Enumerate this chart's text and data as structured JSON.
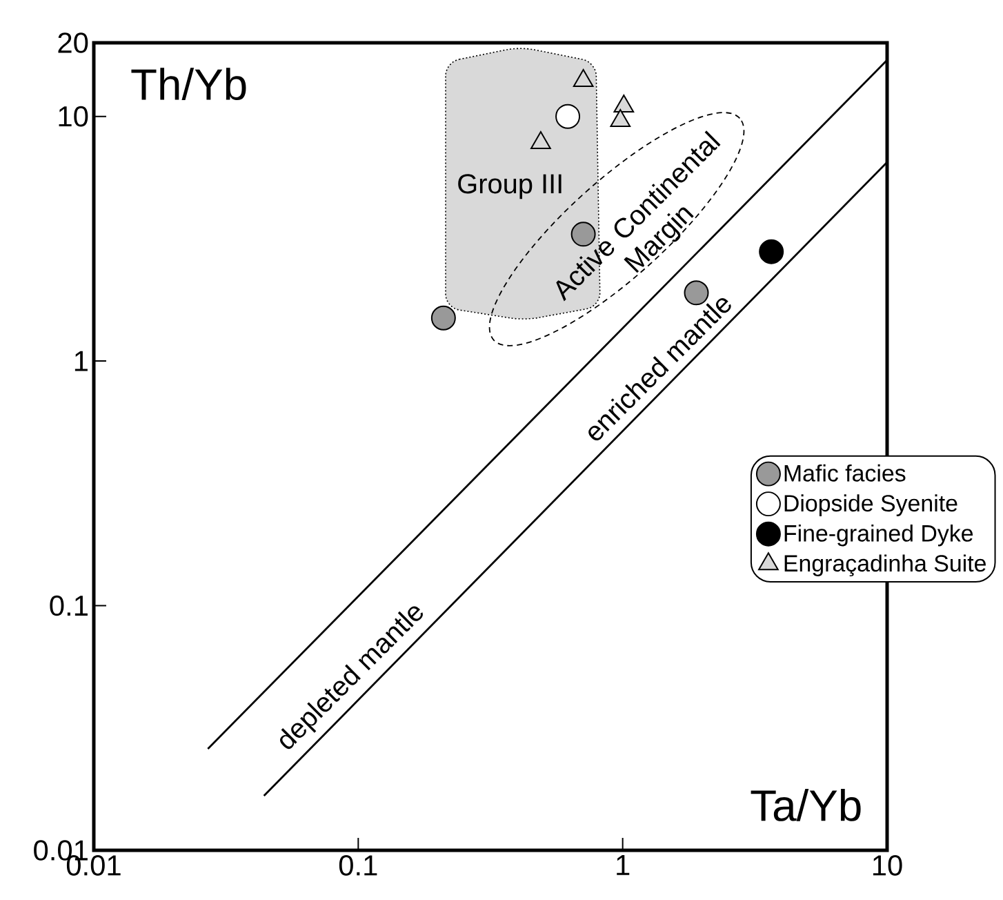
{
  "chart_data": {
    "type": "scatter",
    "xlabel": "Ta/Yb",
    "ylabel": "Th/Yb",
    "log": "xy",
    "xlim": [
      0.01,
      10
    ],
    "ylim": [
      0.01,
      20
    ],
    "xticks": [
      0.01,
      0.1,
      1,
      10
    ],
    "yticks": [
      0.01,
      0.1,
      1,
      10,
      20
    ],
    "grid": false,
    "legend": "right",
    "series": [
      {
        "type": "line",
        "color": "#000000",
        "line_style": "solid",
        "x": [
          0.027,
          10
        ],
        "values": [
          0.026,
          17
        ]
      },
      {
        "type": "line",
        "color": "#000000",
        "line_style": "solid",
        "x": [
          0.044,
          10
        ],
        "values": [
          0.0167,
          6.5
        ]
      },
      {
        "name": "Mafic facies",
        "color": "#999999",
        "marker": "circle",
        "x": [
          0.21,
          0.71,
          1.9
        ],
        "values": [
          1.5,
          3.3,
          1.9
        ]
      },
      {
        "name": "Diopside Syenite",
        "color": "#ffffff",
        "marker": "circle",
        "x": [
          0.62
        ],
        "values": [
          10
        ]
      },
      {
        "name": "Fine-grained Dyke",
        "color": "#000000",
        "marker": "circle",
        "x": [
          3.65
        ],
        "values": [
          2.8
        ]
      },
      {
        "name": "Engraçadinha Suite",
        "color": "#d9d9d9",
        "marker": "triangle",
        "x": [
          0.49,
          0.71,
          1.01,
          0.98
        ],
        "values": [
          7.8,
          14,
          11,
          9.6
        ]
      }
    ],
    "annotations": [
      "Group III",
      "Active Continental Margin",
      "depleted mantle",
      "enriched mantle"
    ]
  }
}
